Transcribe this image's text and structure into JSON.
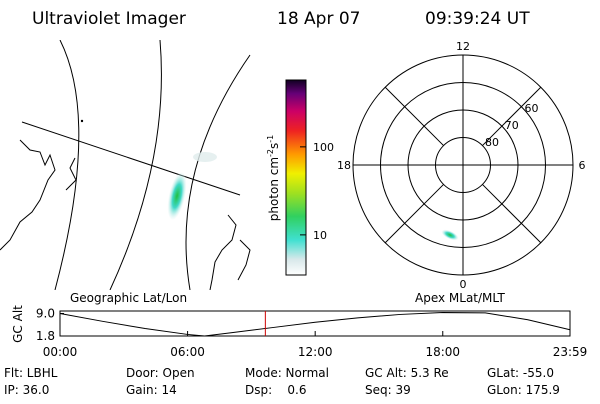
{
  "header": {
    "title": "Ultraviolet Imager",
    "date": "18 Apr 07",
    "time": "09:39:24 UT"
  },
  "colorbar": {
    "label": [
      "photon cm",
      "-2",
      "s",
      "-1"
    ],
    "log": true,
    "range": [
      3.5,
      575
    ],
    "ticks": [
      10,
      100
    ]
  },
  "map_label": "Geographic Lat/Lon",
  "polar": {
    "label": "Apex MLat/MLT",
    "rlim": [
      90,
      50
    ],
    "rticks": [
      80,
      70,
      60
    ],
    "thetalim": [
      0,
      24
    ],
    "thetaticks": [
      0,
      6,
      12,
      18
    ]
  },
  "altitude": {
    "ylabel": "GC Alt",
    "xlim": [
      0,
      1439
    ],
    "xticks": [
      {
        "value": 0,
        "label": "00:00"
      },
      {
        "value": 360,
        "label": "06:00"
      },
      {
        "value": 720,
        "label": "12:00"
      },
      {
        "value": 1080,
        "label": "18:00"
      },
      {
        "value": 1439,
        "label": "23:59"
      }
    ],
    "ylim": [
      1.8,
      9.8
    ],
    "yticks": [
      {
        "value": 9.0,
        "label": "9.0"
      },
      {
        "value": 1.8,
        "label": "1.8"
      }
    ],
    "x": [
      0,
      120,
      240,
      360,
      408,
      480,
      600,
      720,
      840,
      960,
      1080,
      1200,
      1320,
      1439
    ],
    "values": [
      9.0,
      6.5,
      4.2,
      2.3,
      1.8,
      2.8,
      4.5,
      6.2,
      7.6,
      8.7,
      9.3,
      9.2,
      7.0,
      3.8
    ],
    "color": "#000000",
    "marker": 579.4,
    "marker_color": "#cc0000"
  },
  "footer": {
    "rows": [
      [
        "Flt: LBHL",
        "Door: Open",
        "Mode: Normal",
        "GC Alt: 5.3 Re",
        "GLat: -55.0"
      ],
      [
        "IP: 36.0",
        "Gain: 14",
        "Dsp:    0.6",
        "Seq: 39",
        "GLon: 175.9"
      ]
    ]
  }
}
